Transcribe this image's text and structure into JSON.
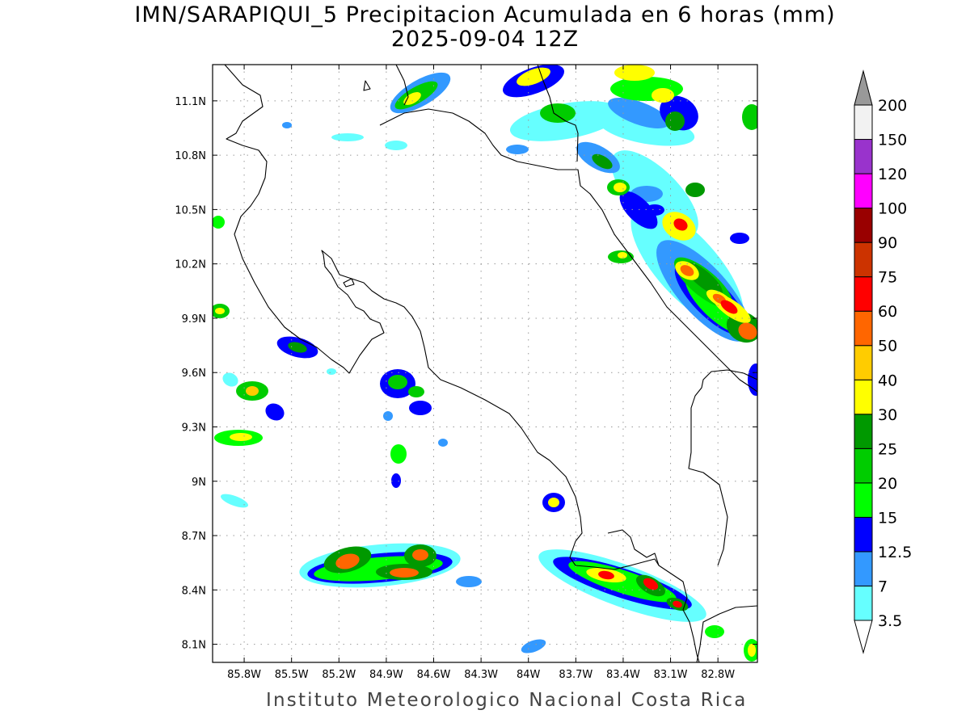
{
  "title": {
    "line1": "IMN/SARAPIQUI_5 Precipitacion Acumulada en 6 horas (mm)",
    "line2": "2025-09-04 12Z"
  },
  "footer": "Instituto Meteorologico Nacional Costa Rica",
  "map": {
    "projection": "lat-lon",
    "lon_range": [
      -86.0,
      -82.55
    ],
    "lat_range": [
      8.0,
      11.3
    ],
    "grid": "dotted",
    "lon_ticks": [
      {
        "value": -85.8,
        "label": "85.8W"
      },
      {
        "value": -85.5,
        "label": "85.5W"
      },
      {
        "value": -85.2,
        "label": "85.2W"
      },
      {
        "value": -84.9,
        "label": "84.9W"
      },
      {
        "value": -84.6,
        "label": "84.6W"
      },
      {
        "value": -84.3,
        "label": "84.3W"
      },
      {
        "value": -84.0,
        "label": "84W"
      },
      {
        "value": -83.7,
        "label": "83.7W"
      },
      {
        "value": -83.4,
        "label": "83.4W"
      },
      {
        "value": -83.1,
        "label": "83.1W"
      },
      {
        "value": -82.8,
        "label": "82.8W"
      }
    ],
    "lat_ticks": [
      {
        "value": 11.1,
        "label": "11.1N"
      },
      {
        "value": 10.8,
        "label": "10.8N"
      },
      {
        "value": 10.5,
        "label": "10.5N"
      },
      {
        "value": 10.2,
        "label": "10.2N"
      },
      {
        "value": 9.9,
        "label": "9.9N"
      },
      {
        "value": 9.6,
        "label": "9.6N"
      },
      {
        "value": 9.3,
        "label": "9.3N"
      },
      {
        "value": 9.0,
        "label": "9N"
      },
      {
        "value": 8.7,
        "label": "8.7N"
      },
      {
        "value": 8.4,
        "label": "8.4N"
      },
      {
        "value": 8.1,
        "label": "8.1N"
      }
    ]
  },
  "colorbar": {
    "units": "mm",
    "levels": [
      "3.5",
      "7",
      "12.5",
      "15",
      "20",
      "25",
      "30",
      "40",
      "50",
      "60",
      "75",
      "90",
      "100",
      "120",
      "150",
      "200"
    ],
    "colors": [
      "#66ffff",
      "#3399ff",
      "#0000ff",
      "#00ff00",
      "#00cc00",
      "#009900",
      "#ffff00",
      "#ffcc00",
      "#ff6600",
      "#ff0000",
      "#cc3300",
      "#990000",
      "#ff00ff",
      "#9933cc",
      "#f2f2f2",
      "#999999"
    ]
  },
  "precip_cells": [
    {
      "lon": -83.0,
      "lat": 10.3,
      "peak_mm": 60
    },
    {
      "lon": -82.7,
      "lat": 10.05,
      "peak_mm": 75
    },
    {
      "lon": -82.58,
      "lat": 9.85,
      "peak_mm": 60
    },
    {
      "lon": -83.05,
      "lat": 10.45,
      "peak_mm": 60
    },
    {
      "lon": -83.35,
      "lat": 11.15,
      "peak_mm": 30
    },
    {
      "lon": -83.75,
      "lat": 11.12,
      "peak_mm": 30
    },
    {
      "lon": -84.85,
      "lat": 11.05,
      "peak_mm": 25
    },
    {
      "lon": -85.1,
      "lat": 8.55,
      "peak_mm": 60
    },
    {
      "lon": -84.85,
      "lat": 8.5,
      "peak_mm": 60
    },
    {
      "lon": -84.65,
      "lat": 8.6,
      "peak_mm": 60
    },
    {
      "lon": -83.45,
      "lat": 8.48,
      "peak_mm": 60
    },
    {
      "lon": -83.15,
      "lat": 8.4,
      "peak_mm": 60
    },
    {
      "lon": -85.55,
      "lat": 9.75,
      "peak_mm": 30
    },
    {
      "lon": -85.8,
      "lat": 9.5,
      "peak_mm": 40
    },
    {
      "lon": -84.75,
      "lat": 9.55,
      "peak_mm": 25
    },
    {
      "lon": -85.75,
      "lat": 9.25,
      "peak_mm": 25
    }
  ]
}
